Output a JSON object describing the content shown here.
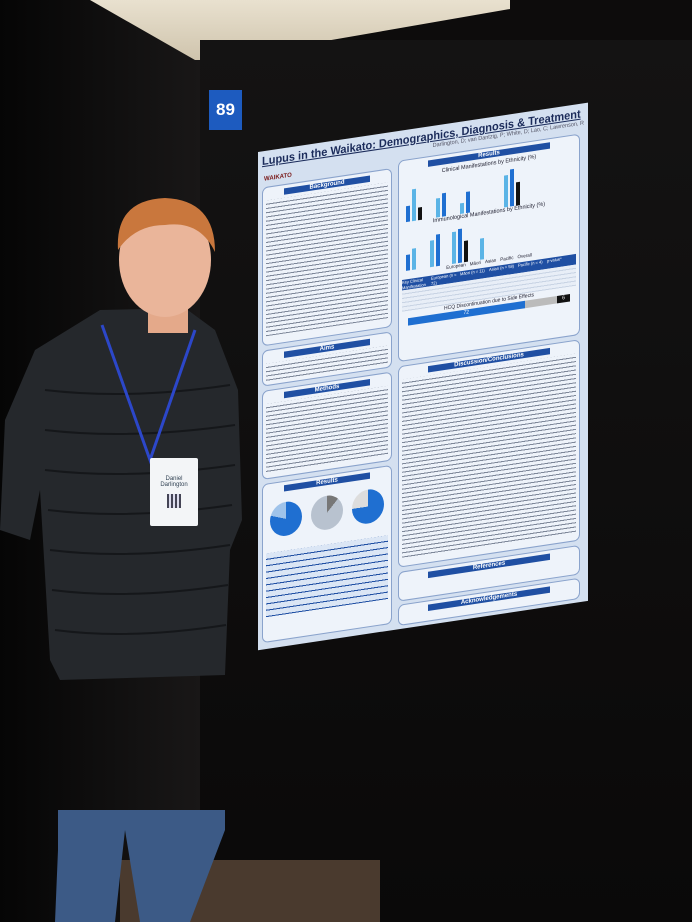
{
  "booth": {
    "number": "89"
  },
  "poster": {
    "title": "Lupus in the Waikato: Demographics, Diagnosis & Treatment",
    "authors": "Darlington, D; van Dantzig, P; White, D; Lao, C; Lawrenson, R",
    "logo_text": "WAIKATO",
    "sections": {
      "background": "Background",
      "aims": "Aims",
      "methods": "Methods",
      "results": "Results",
      "clinical": "Clinical Manifestations by Ethnicity (%)",
      "immuno": "Immunological Manifestations by Ethnicity (%)",
      "hcq": "HCQ Discontinuation due to Side Effects",
      "discussion": "Discussion/Conclusions",
      "references": "References",
      "acknowledgements": "Acknowledgements"
    },
    "legend": [
      "European",
      "Māori",
      "Asian",
      "Pacific",
      "Overall"
    ],
    "table_headers": [
      "Key Clinical Manifestation",
      "European (n = 72)",
      "Māori (n = 11)",
      "Asian (n = 58)",
      "Pacific (n = 4)",
      "p-value*"
    ],
    "hcq_value": "72",
    "hcq_end": "6"
  },
  "badge": {
    "name": "Daniel Darlington"
  },
  "colors": {
    "poster_blue": "#1f4fa3",
    "bar_light": "#5bb4e6",
    "bar_dark": "#111111"
  }
}
